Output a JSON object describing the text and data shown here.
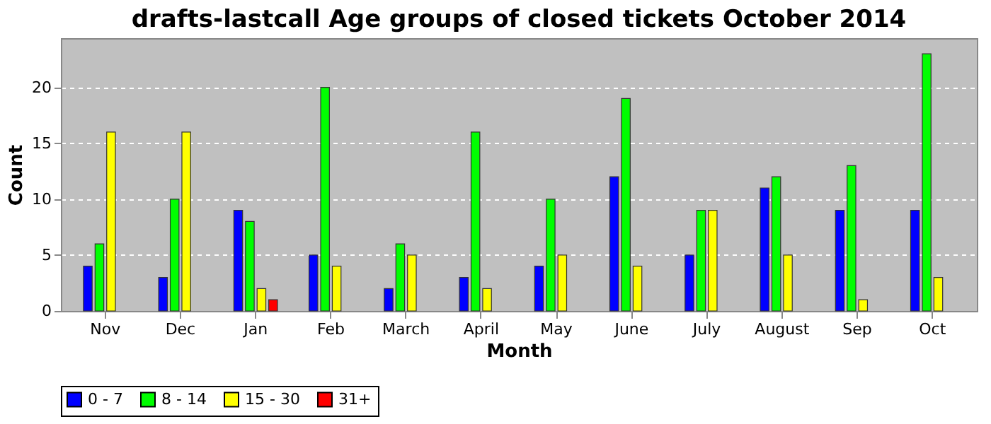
{
  "chart_data": {
    "type": "bar",
    "title": "drafts-lastcall Age groups of closed tickets October 2014",
    "xlabel": "Month",
    "ylabel": "Count",
    "categories": [
      "Nov",
      "Dec",
      "Jan",
      "Feb",
      "March",
      "April",
      "May",
      "June",
      "July",
      "August",
      "Sep",
      "Oct"
    ],
    "series": [
      {
        "name": "0 - 7",
        "color": "#0000ff",
        "values": [
          4,
          3,
          9,
          5,
          2,
          3,
          4,
          12,
          5,
          11,
          9,
          9
        ]
      },
      {
        "name": "8 - 14",
        "color": "#00ff00",
        "values": [
          6,
          10,
          8,
          20,
          6,
          16,
          10,
          19,
          9,
          12,
          13,
          23
        ]
      },
      {
        "name": "15 - 30",
        "color": "#ffff00",
        "values": [
          16,
          16,
          2,
          4,
          5,
          2,
          5,
          4,
          9,
          5,
          1,
          3
        ]
      },
      {
        "name": "31+",
        "color": "#ff0000",
        "values": [
          null,
          null,
          1,
          null,
          null,
          null,
          null,
          null,
          null,
          null,
          null,
          null
        ]
      }
    ],
    "ylim": [
      0,
      24.4
    ],
    "yticks": [
      0,
      5,
      10,
      15,
      20
    ],
    "grid": "y",
    "legend": "bottom"
  }
}
